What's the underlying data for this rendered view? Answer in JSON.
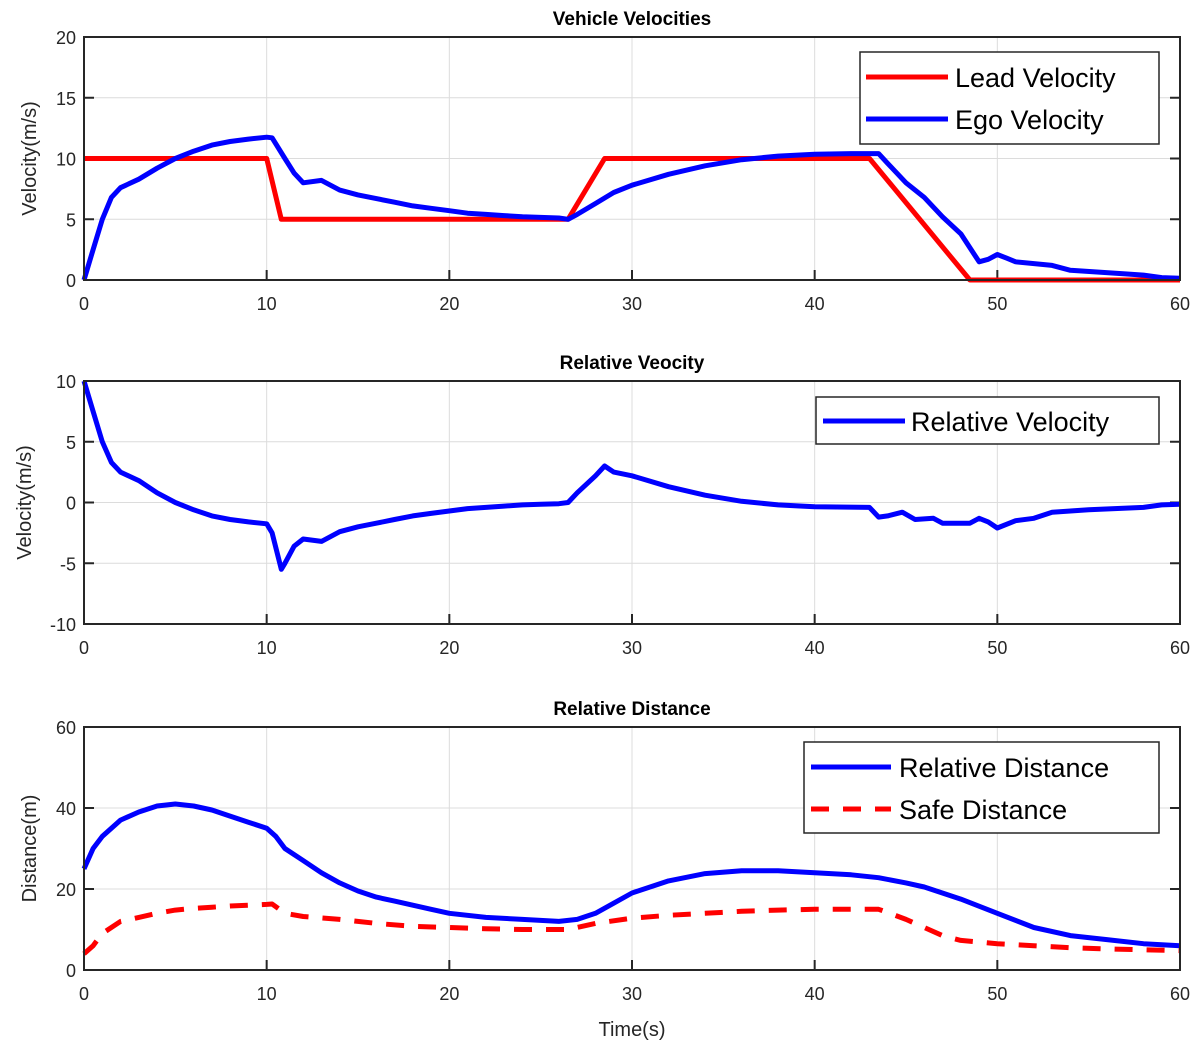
{
  "chart_data": [
    {
      "type": "line",
      "title": "Vehicle Velocities",
      "xlabel": "",
      "ylabel": "Velocity(m/s)",
      "xlim": [
        0,
        60
      ],
      "ylim": [
        0,
        20
      ],
      "xticks": [
        0,
        10,
        20,
        30,
        40,
        50,
        60
      ],
      "yticks": [
        0,
        5,
        10,
        15,
        20
      ],
      "grid": true,
      "legend": "top-right",
      "series": [
        {
          "name": "Lead Velocity",
          "color": "#ff0000",
          "dash": false,
          "x": [
            0,
            10,
            10.8,
            26.5,
            28.5,
            43,
            48.5,
            60
          ],
          "y": [
            10,
            10,
            5,
            5,
            10,
            10,
            0,
            0
          ]
        },
        {
          "name": "Ego Velocity",
          "color": "#0000ff",
          "dash": false,
          "x": [
            0,
            0.5,
            1,
            1.5,
            2,
            3,
            4,
            5,
            6,
            7,
            8,
            9,
            10,
            10.3,
            11,
            11.5,
            12,
            13,
            14,
            15,
            16,
            17,
            18,
            19,
            20,
            21,
            22,
            23,
            24,
            25,
            26,
            26.5,
            27,
            28,
            29,
            30,
            32,
            34,
            36,
            38,
            40,
            42,
            43.5,
            44,
            45,
            46,
            47,
            48,
            49,
            49.5,
            50,
            50.5,
            51,
            53,
            54,
            57,
            58,
            59,
            60
          ],
          "y": [
            0,
            2.5,
            5,
            6.8,
            7.6,
            8.3,
            9.2,
            10,
            10.6,
            11.1,
            11.4,
            11.6,
            11.75,
            11.7,
            10,
            8.8,
            8,
            8.2,
            7.4,
            7,
            6.7,
            6.4,
            6.1,
            5.9,
            5.7,
            5.5,
            5.4,
            5.3,
            5.2,
            5.15,
            5.1,
            5,
            5.4,
            6.3,
            7.2,
            7.8,
            8.7,
            9.4,
            9.9,
            10.2,
            10.35,
            10.4,
            10.4,
            9.6,
            8,
            6.8,
            5.2,
            3.8,
            1.5,
            1.7,
            2.1,
            1.8,
            1.5,
            1.2,
            0.8,
            0.5,
            0.4,
            0.2,
            0.15
          ]
        }
      ]
    },
    {
      "type": "line",
      "title": "Relative Veocity",
      "xlabel": "",
      "ylabel": "Velocity(m/s)",
      "xlim": [
        0,
        60
      ],
      "ylim": [
        -10,
        10
      ],
      "xticks": [
        0,
        10,
        20,
        30,
        40,
        50,
        60
      ],
      "yticks": [
        -10,
        -5,
        0,
        5,
        10
      ],
      "grid": true,
      "legend": "top-right",
      "series": [
        {
          "name": "Relative Velocity",
          "color": "#0000ff",
          "dash": false,
          "x": [
            0,
            0.5,
            1,
            1.5,
            2,
            3,
            4,
            5,
            6,
            7,
            8,
            9,
            10,
            10.3,
            10.8,
            11,
            11.5,
            12,
            13,
            14,
            15,
            16,
            17,
            18,
            19,
            20,
            21,
            22,
            23,
            24,
            25,
            26,
            26.5,
            27,
            28,
            28.5,
            29,
            30,
            32,
            34,
            36,
            38,
            40,
            43,
            43.5,
            44,
            44.8,
            45.5,
            46.5,
            47,
            48.5,
            49,
            49.5,
            50,
            51,
            52,
            53,
            55,
            58,
            59,
            60
          ],
          "y": [
            10,
            7.5,
            5,
            3.3,
            2.5,
            1.8,
            0.8,
            0,
            -0.6,
            -1.1,
            -1.4,
            -1.6,
            -1.75,
            -2.5,
            -5.5,
            -5,
            -3.6,
            -3,
            -3.2,
            -2.4,
            -2,
            -1.7,
            -1.4,
            -1.1,
            -0.9,
            -0.7,
            -0.5,
            -0.4,
            -0.3,
            -0.2,
            -0.15,
            -0.1,
            0,
            0.8,
            2.2,
            3,
            2.5,
            2.2,
            1.3,
            0.6,
            0.1,
            -0.2,
            -0.35,
            -0.4,
            -1.2,
            -1.1,
            -0.8,
            -1.4,
            -1.3,
            -1.7,
            -1.7,
            -1.3,
            -1.6,
            -2.1,
            -1.5,
            -1.3,
            -0.8,
            -0.6,
            -0.4,
            -0.2,
            -0.15
          ]
        }
      ]
    },
    {
      "type": "line",
      "title": "Relative Distance",
      "xlabel": "Time(s)",
      "ylabel": "Distance(m)",
      "xlim": [
        0,
        60
      ],
      "ylim": [
        0,
        60
      ],
      "xticks": [
        0,
        10,
        20,
        30,
        40,
        50,
        60
      ],
      "yticks": [
        0,
        20,
        40,
        60
      ],
      "grid": true,
      "legend": "top-right",
      "series": [
        {
          "name": "Relative Distance",
          "color": "#0000ff",
          "dash": false,
          "x": [
            0,
            0.5,
            1,
            2,
            3,
            4,
            5,
            6,
            7,
            8,
            9,
            10,
            10.5,
            11,
            12,
            13,
            14,
            15,
            16,
            17,
            18,
            19,
            20,
            22,
            24,
            26,
            27,
            28,
            29,
            30,
            32,
            34,
            36,
            38,
            40,
            42,
            43.5,
            45,
            46,
            48,
            50,
            52,
            54,
            56,
            58,
            60
          ],
          "y": [
            25,
            30,
            33,
            37,
            39,
            40.5,
            41,
            40.5,
            39.5,
            38,
            36.5,
            35,
            33,
            30,
            27,
            24,
            21.5,
            19.5,
            18,
            17,
            16,
            15,
            14,
            13,
            12.5,
            12,
            12.5,
            14,
            16.5,
            19,
            22,
            23.8,
            24.5,
            24.5,
            24,
            23.5,
            22.8,
            21.5,
            20.5,
            17.5,
            14,
            10.5,
            8.5,
            7.5,
            6.5,
            6
          ]
        },
        {
          "name": "Safe Distance",
          "color": "#ff0000",
          "dash": true,
          "x": [
            0,
            0.5,
            1,
            2,
            3,
            4,
            5,
            6,
            7,
            8,
            9,
            10,
            10.3,
            11,
            12,
            14,
            16,
            18,
            20,
            22,
            24,
            26,
            26.5,
            28,
            30,
            32,
            34,
            36,
            38,
            40,
            42,
            43.5,
            44,
            45,
            46,
            47,
            48,
            50,
            52,
            54,
            56,
            58,
            60
          ],
          "y": [
            4,
            6,
            9,
            12,
            13,
            14,
            14.8,
            15.2,
            15.5,
            15.8,
            16,
            16.2,
            16.3,
            14,
            13.2,
            12.5,
            11.5,
            10.8,
            10.5,
            10.2,
            10,
            10,
            10,
            11.5,
            12.8,
            13.5,
            14,
            14.5,
            14.8,
            15,
            15,
            15,
            14.2,
            12.5,
            10.5,
            8.5,
            7.3,
            6.5,
            6,
            5.5,
            5.2,
            5,
            4.8
          ]
        }
      ]
    }
  ]
}
